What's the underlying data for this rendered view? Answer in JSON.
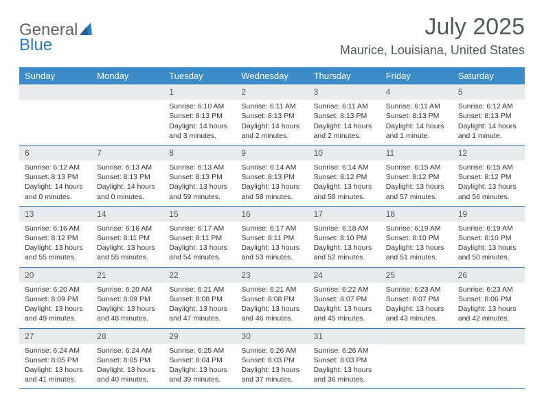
{
  "brand": {
    "part1": "General",
    "part2": "Blue"
  },
  "title": "July 2025",
  "location": "Maurice, Louisiana, United States",
  "colors": {
    "header_bg": "#3b8bc9",
    "header_text": "#ffffff",
    "daynum_bg": "#e9eaeb",
    "week_border": "#2f6fa6",
    "title_color": "#555a5e",
    "brand_gray": "#5f6367",
    "brand_blue": "#2a7bbf",
    "body_text": "#333333",
    "page_bg": "#ffffff"
  },
  "typography": {
    "title_fontsize": 34,
    "location_fontsize": 18,
    "header_fontsize": 13,
    "daynum_fontsize": 12,
    "cell_fontsize": 10.5
  },
  "day_labels": [
    "Sunday",
    "Monday",
    "Tuesday",
    "Wednesday",
    "Thursday",
    "Friday",
    "Saturday"
  ],
  "weeks": [
    [
      null,
      null,
      {
        "n": "1",
        "sr": "Sunrise: 6:10 AM",
        "ss": "Sunset: 8:13 PM",
        "dl": "Daylight: 14 hours and 3 minutes."
      },
      {
        "n": "2",
        "sr": "Sunrise: 6:11 AM",
        "ss": "Sunset: 8:13 PM",
        "dl": "Daylight: 14 hours and 2 minutes."
      },
      {
        "n": "3",
        "sr": "Sunrise: 6:11 AM",
        "ss": "Sunset: 8:13 PM",
        "dl": "Daylight: 14 hours and 2 minutes."
      },
      {
        "n": "4",
        "sr": "Sunrise: 6:11 AM",
        "ss": "Sunset: 8:13 PM",
        "dl": "Daylight: 14 hours and 1 minute."
      },
      {
        "n": "5",
        "sr": "Sunrise: 6:12 AM",
        "ss": "Sunset: 8:13 PM",
        "dl": "Daylight: 14 hours and 1 minute."
      }
    ],
    [
      {
        "n": "6",
        "sr": "Sunrise: 6:12 AM",
        "ss": "Sunset: 8:13 PM",
        "dl": "Daylight: 14 hours and 0 minutes."
      },
      {
        "n": "7",
        "sr": "Sunrise: 6:13 AM",
        "ss": "Sunset: 8:13 PM",
        "dl": "Daylight: 14 hours and 0 minutes."
      },
      {
        "n": "8",
        "sr": "Sunrise: 6:13 AM",
        "ss": "Sunset: 8:13 PM",
        "dl": "Daylight: 13 hours and 59 minutes."
      },
      {
        "n": "9",
        "sr": "Sunrise: 6:14 AM",
        "ss": "Sunset: 8:13 PM",
        "dl": "Daylight: 13 hours and 58 minutes."
      },
      {
        "n": "10",
        "sr": "Sunrise: 6:14 AM",
        "ss": "Sunset: 8:12 PM",
        "dl": "Daylight: 13 hours and 58 minutes."
      },
      {
        "n": "11",
        "sr": "Sunrise: 6:15 AM",
        "ss": "Sunset: 8:12 PM",
        "dl": "Daylight: 13 hours and 57 minutes."
      },
      {
        "n": "12",
        "sr": "Sunrise: 6:15 AM",
        "ss": "Sunset: 8:12 PM",
        "dl": "Daylight: 13 hours and 56 minutes."
      }
    ],
    [
      {
        "n": "13",
        "sr": "Sunrise: 6:16 AM",
        "ss": "Sunset: 8:12 PM",
        "dl": "Daylight: 13 hours and 55 minutes."
      },
      {
        "n": "14",
        "sr": "Sunrise: 6:16 AM",
        "ss": "Sunset: 8:11 PM",
        "dl": "Daylight: 13 hours and 55 minutes."
      },
      {
        "n": "15",
        "sr": "Sunrise: 6:17 AM",
        "ss": "Sunset: 8:11 PM",
        "dl": "Daylight: 13 hours and 54 minutes."
      },
      {
        "n": "16",
        "sr": "Sunrise: 6:17 AM",
        "ss": "Sunset: 8:11 PM",
        "dl": "Daylight: 13 hours and 53 minutes."
      },
      {
        "n": "17",
        "sr": "Sunrise: 6:18 AM",
        "ss": "Sunset: 8:10 PM",
        "dl": "Daylight: 13 hours and 52 minutes."
      },
      {
        "n": "18",
        "sr": "Sunrise: 6:19 AM",
        "ss": "Sunset: 8:10 PM",
        "dl": "Daylight: 13 hours and 51 minutes."
      },
      {
        "n": "19",
        "sr": "Sunrise: 6:19 AM",
        "ss": "Sunset: 8:10 PM",
        "dl": "Daylight: 13 hours and 50 minutes."
      }
    ],
    [
      {
        "n": "20",
        "sr": "Sunrise: 6:20 AM",
        "ss": "Sunset: 8:09 PM",
        "dl": "Daylight: 13 hours and 49 minutes."
      },
      {
        "n": "21",
        "sr": "Sunrise: 6:20 AM",
        "ss": "Sunset: 8:09 PM",
        "dl": "Daylight: 13 hours and 48 minutes."
      },
      {
        "n": "22",
        "sr": "Sunrise: 6:21 AM",
        "ss": "Sunset: 8:08 PM",
        "dl": "Daylight: 13 hours and 47 minutes."
      },
      {
        "n": "23",
        "sr": "Sunrise: 6:21 AM",
        "ss": "Sunset: 8:08 PM",
        "dl": "Daylight: 13 hours and 46 minutes."
      },
      {
        "n": "24",
        "sr": "Sunrise: 6:22 AM",
        "ss": "Sunset: 8:07 PM",
        "dl": "Daylight: 13 hours and 45 minutes."
      },
      {
        "n": "25",
        "sr": "Sunrise: 6:23 AM",
        "ss": "Sunset: 8:07 PM",
        "dl": "Daylight: 13 hours and 43 minutes."
      },
      {
        "n": "26",
        "sr": "Sunrise: 6:23 AM",
        "ss": "Sunset: 8:06 PM",
        "dl": "Daylight: 13 hours and 42 minutes."
      }
    ],
    [
      {
        "n": "27",
        "sr": "Sunrise: 6:24 AM",
        "ss": "Sunset: 8:05 PM",
        "dl": "Daylight: 13 hours and 41 minutes."
      },
      {
        "n": "28",
        "sr": "Sunrise: 6:24 AM",
        "ss": "Sunset: 8:05 PM",
        "dl": "Daylight: 13 hours and 40 minutes."
      },
      {
        "n": "29",
        "sr": "Sunrise: 6:25 AM",
        "ss": "Sunset: 8:04 PM",
        "dl": "Daylight: 13 hours and 39 minutes."
      },
      {
        "n": "30",
        "sr": "Sunrise: 6:26 AM",
        "ss": "Sunset: 8:03 PM",
        "dl": "Daylight: 13 hours and 37 minutes."
      },
      {
        "n": "31",
        "sr": "Sunrise: 6:26 AM",
        "ss": "Sunset: 8:03 PM",
        "dl": "Daylight: 13 hours and 36 minutes."
      },
      null,
      null
    ]
  ]
}
